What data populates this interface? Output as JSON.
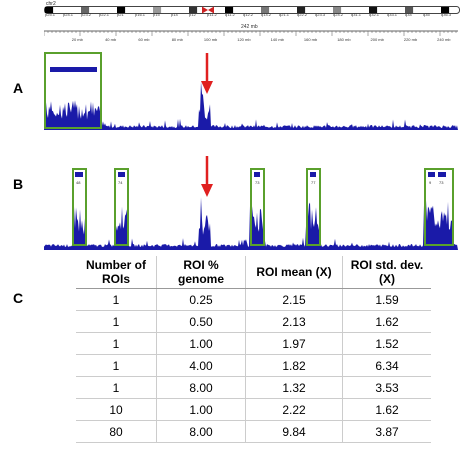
{
  "browser": {
    "chromosome": "chr2",
    "bands": [
      "p25.1",
      "p24.1",
      "p23.2",
      "p22.1",
      "p21",
      "p16.1",
      "p15",
      "p14",
      "p12",
      "p11.2",
      "q11.2",
      "q12.2",
      "q14.2",
      "q21.1",
      "q22.2",
      "q23.3",
      "q24.2",
      "q31.1",
      "q32.1",
      "q33.1",
      "q34",
      "q35",
      "q36.3"
    ],
    "length_label": "242 mb",
    "ruler_ticks": [
      "20 mb",
      "40 mb",
      "60 mb",
      "80 mb",
      "100 mb",
      "120 mb",
      "140 mb",
      "160 mb",
      "180 mb",
      "200 mb",
      "220 mb",
      "240 mb"
    ]
  },
  "panels": {
    "a_label": "A",
    "b_label": "B",
    "c_label": "C"
  },
  "rois_b": [
    "48",
    "74",
    "73",
    "77",
    "9",
    "73"
  ],
  "table": {
    "headers": [
      "Number of ROIs",
      "ROI % genome",
      "ROI mean (X)",
      "ROI std. dev. (X)"
    ],
    "rows": [
      [
        "1",
        "0.25",
        "2.15",
        "1.59"
      ],
      [
        "1",
        "0.50",
        "2.13",
        "1.62"
      ],
      [
        "1",
        "1.00",
        "1.97",
        "1.52"
      ],
      [
        "1",
        "4.00",
        "1.82",
        "6.34"
      ],
      [
        "1",
        "8.00",
        "1.32",
        "3.53"
      ],
      [
        "10",
        "1.00",
        "2.22",
        "1.62"
      ],
      [
        "80",
        "8.00",
        "9.84",
        "3.87"
      ]
    ]
  },
  "colors": {
    "coverage": "#1a1aa8",
    "roi_box": "#5aa02c",
    "arrow": "#e02020"
  }
}
